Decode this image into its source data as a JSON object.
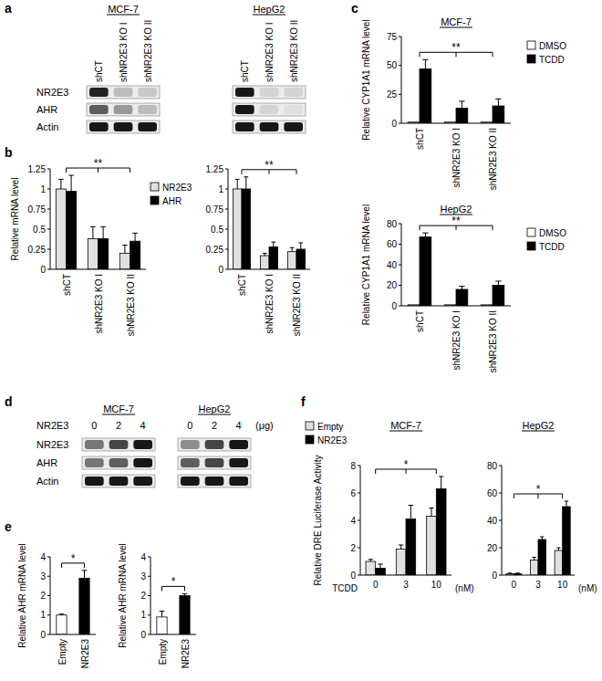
{
  "panel_labels": [
    "a",
    "b",
    "c",
    "d",
    "e",
    "f"
  ],
  "blot_panels": [
    {
      "row_labels": [
        "NR2E3",
        "AHR",
        "Actin"
      ],
      "blots": [
        {
          "title": "MCF-7",
          "lanes": [
            "shCT",
            "shNR2E3 KO I",
            "shNR2E3 KO II"
          ],
          "bands": [
            [
              0.85,
              0.2,
              0.15
            ],
            [
              0.6,
              0.35,
              0.2
            ],
            [
              0.9,
              0.9,
              0.9
            ]
          ]
        },
        {
          "title": "HepG2",
          "lanes": [
            "shCT",
            "shNR2E3 KO I",
            "shNR2E3 KO II"
          ],
          "bands": [
            [
              0.9,
              0.1,
              0.1
            ],
            [
              0.9,
              0.1,
              0.05
            ],
            [
              0.9,
              0.9,
              0.9
            ]
          ]
        }
      ]
    },
    {
      "lane_label": "NR2E3",
      "lane_unit": "(μg)",
      "row_labels": [
        "NR2E3",
        "AHR",
        "Actin"
      ],
      "blots": [
        {
          "title": "MCF-7",
          "lanes": [
            "0",
            "2",
            "4"
          ],
          "bands": [
            [
              0.5,
              0.7,
              0.9
            ],
            [
              0.5,
              0.6,
              0.9
            ],
            [
              0.9,
              0.9,
              0.9
            ]
          ]
        },
        {
          "title": "HepG2",
          "lanes": [
            "0",
            "2",
            "4"
          ],
          "bands": [
            [
              0.4,
              0.7,
              0.9
            ],
            [
              0.6,
              0.7,
              0.9
            ],
            [
              0.9,
              0.9,
              0.9
            ]
          ]
        }
      ]
    }
  ],
  "chart_data": [
    {
      "type": "bar",
      "y_label": "Relative mRNA level",
      "categories": [
        "shCT",
        "shNR2E3 KO I",
        "shNR2E3 KO II"
      ],
      "series": [
        {
          "name": "NR2E3",
          "color": "#e0e0e0",
          "values": [
            1,
            0.38,
            0.2
          ],
          "errors": [
            0.12,
            0.15,
            0.1
          ]
        },
        {
          "name": "AHR",
          "color": "#000000",
          "values": [
            0.97,
            0.38,
            0.35
          ],
          "errors": [
            0.2,
            0.15,
            0.1
          ]
        }
      ],
      "ylim": [
        0,
        1.25
      ],
      "yticks": [
        0,
        0.25,
        0.5,
        0.75,
        1,
        1.25
      ],
      "legend": "right",
      "annotations": [
        "**"
      ]
    },
    {
      "type": "bar",
      "categories": [
        "shCT",
        "shNR2E3 KO I",
        "shNR2E3 KO II"
      ],
      "series": [
        {
          "color": "#e0e0e0",
          "values": [
            1,
            0.17,
            0.22
          ],
          "errors": [
            0.12,
            0.03,
            0.05
          ]
        },
        {
          "color": "#000000",
          "values": [
            1,
            0.28,
            0.25
          ],
          "errors": [
            0.15,
            0.06,
            0.08
          ]
        }
      ],
      "ylim": [
        0,
        1.25
      ],
      "yticks": [
        0,
        0.25,
        0.5,
        0.75,
        1,
        1.25
      ],
      "annotations": [
        "**"
      ]
    },
    {
      "type": "bar",
      "title": "MCF-7",
      "y_label": "Relative CYP1A1 mRNA level",
      "categories": [
        "shCT",
        "shNR2E3 KO I",
        "shNR2E3 KO II"
      ],
      "series": [
        {
          "name": "DMSO",
          "color": "#ffffff",
          "values": [
            1,
            1,
            1
          ]
        },
        {
          "name": "TCDD",
          "color": "#000000",
          "values": [
            47,
            13,
            15
          ],
          "errors": [
            8,
            6,
            6
          ]
        }
      ],
      "ylim": [
        0,
        75
      ],
      "yticks": [
        0,
        25,
        50,
        75
      ],
      "legend": "right",
      "annotations": [
        "**"
      ]
    },
    {
      "type": "bar",
      "title": "HepG2",
      "y_label": "Relative CYP1A1 mRNA level",
      "categories": [
        "shCT",
        "shNR2E3 KO I",
        "shNR2E3 KO II"
      ],
      "series": [
        {
          "name": "DMSO",
          "color": "#ffffff",
          "values": [
            1,
            1,
            1
          ]
        },
        {
          "name": "TCDD",
          "color": "#000000",
          "values": [
            67,
            16,
            20
          ],
          "errors": [
            4,
            3,
            4
          ]
        }
      ],
      "ylim": [
        0,
        80
      ],
      "yticks": [
        0,
        20,
        40,
        60,
        80
      ],
      "legend": "right",
      "annotations": [
        "**"
      ]
    },
    {
      "type": "bar",
      "y_label": "Relative AHR mRNA level",
      "categories": [
        "Empty",
        "NR2E3"
      ],
      "values": [
        1,
        2.9
      ],
      "errors": [
        0.05,
        0.4
      ],
      "colors": [
        "#ffffff",
        "#000000"
      ],
      "ylim": [
        0,
        4
      ],
      "yticks": [
        0,
        1,
        2,
        3,
        4
      ],
      "annotations": [
        "*"
      ]
    },
    {
      "type": "bar",
      "y_label": "Relative AHR mRNA level",
      "categories": [
        "Empty",
        "NR2E3"
      ],
      "values": [
        0.9,
        2.0
      ],
      "errors": [
        0.3,
        0.1
      ],
      "colors": [
        "#ffffff",
        "#000000"
      ],
      "ylim": [
        0,
        4
      ],
      "yticks": [
        0,
        1,
        2,
        3,
        4
      ],
      "annotations": [
        "*"
      ]
    },
    {
      "type": "bar",
      "title": "MCF-7",
      "y_label": "Relative DRE Luciferase Activity",
      "x_label": "TCDD",
      "x_unit": "(nM)",
      "categories": [
        "0",
        "3",
        "10"
      ],
      "series": [
        {
          "name": "Empty",
          "color": "#e0e0e0",
          "values": [
            1,
            1.9,
            4.3
          ],
          "errors": [
            0.15,
            0.3,
            0.6
          ]
        },
        {
          "name": "NR2E3",
          "color": "#000000",
          "values": [
            0.5,
            4.1,
            6.3
          ],
          "errors": [
            0.3,
            1,
            0.9
          ]
        }
      ],
      "ylim": [
        0,
        8
      ],
      "yticks": [
        0,
        2,
        4,
        6,
        8
      ],
      "legend": "top-left",
      "annotations": [
        "*"
      ]
    },
    {
      "type": "bar",
      "title": "HepG2",
      "x_unit": "(nM)",
      "categories": [
        "0",
        "3",
        "10"
      ],
      "series": [
        {
          "color": "#e0e0e0",
          "values": [
            1,
            11,
            18
          ],
          "errors": [
            0.5,
            2,
            2
          ]
        },
        {
          "color": "#000000",
          "values": [
            1,
            26,
            50
          ],
          "errors": [
            0.5,
            2,
            4
          ]
        }
      ],
      "ylim": [
        0,
        80
      ],
      "yticks": [
        0,
        20,
        40,
        60,
        80
      ],
      "annotations": [
        "*"
      ]
    }
  ]
}
